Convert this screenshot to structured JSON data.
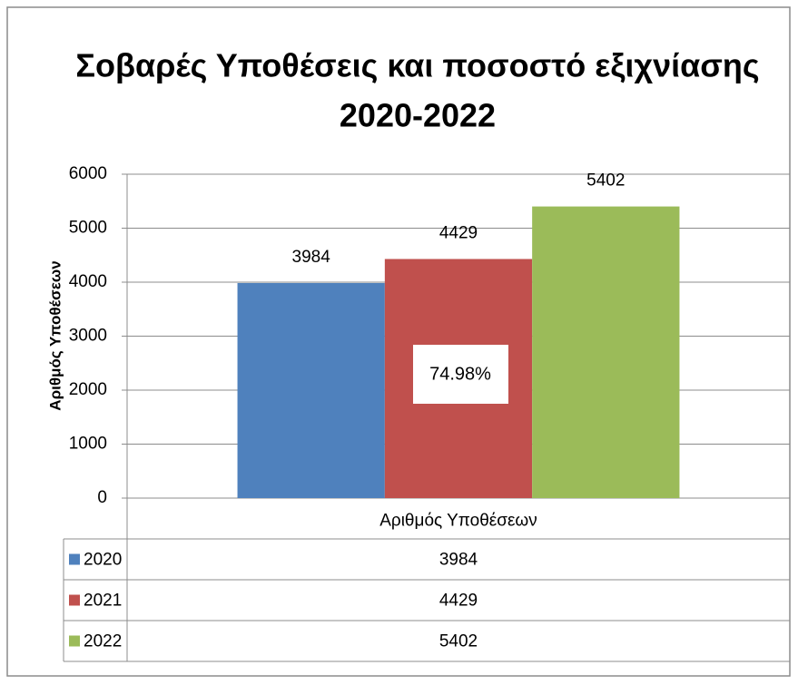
{
  "chart_data": {
    "type": "bar",
    "title": "Σοβαρές Υποθέσεις και ποσοστό εξιχνίασης",
    "subtitle": "2020-2022",
    "ylabel": "Αριθμός Υποθέσεων",
    "categories": [
      "Αριθμός Υποθέσεων"
    ],
    "series": [
      {
        "name": "2020",
        "color": "#4f81bd",
        "values": [
          3984
        ]
      },
      {
        "name": "2021",
        "color": "#c0504d",
        "values": [
          4429
        ]
      },
      {
        "name": "2022",
        "color": "#9bbb59",
        "values": [
          5402
        ]
      }
    ],
    "annotation": "74.98%",
    "ylim": [
      0,
      6000
    ],
    "yticks": [
      0,
      1000,
      2000,
      3000,
      4000,
      5000,
      6000
    ],
    "grid": true
  }
}
